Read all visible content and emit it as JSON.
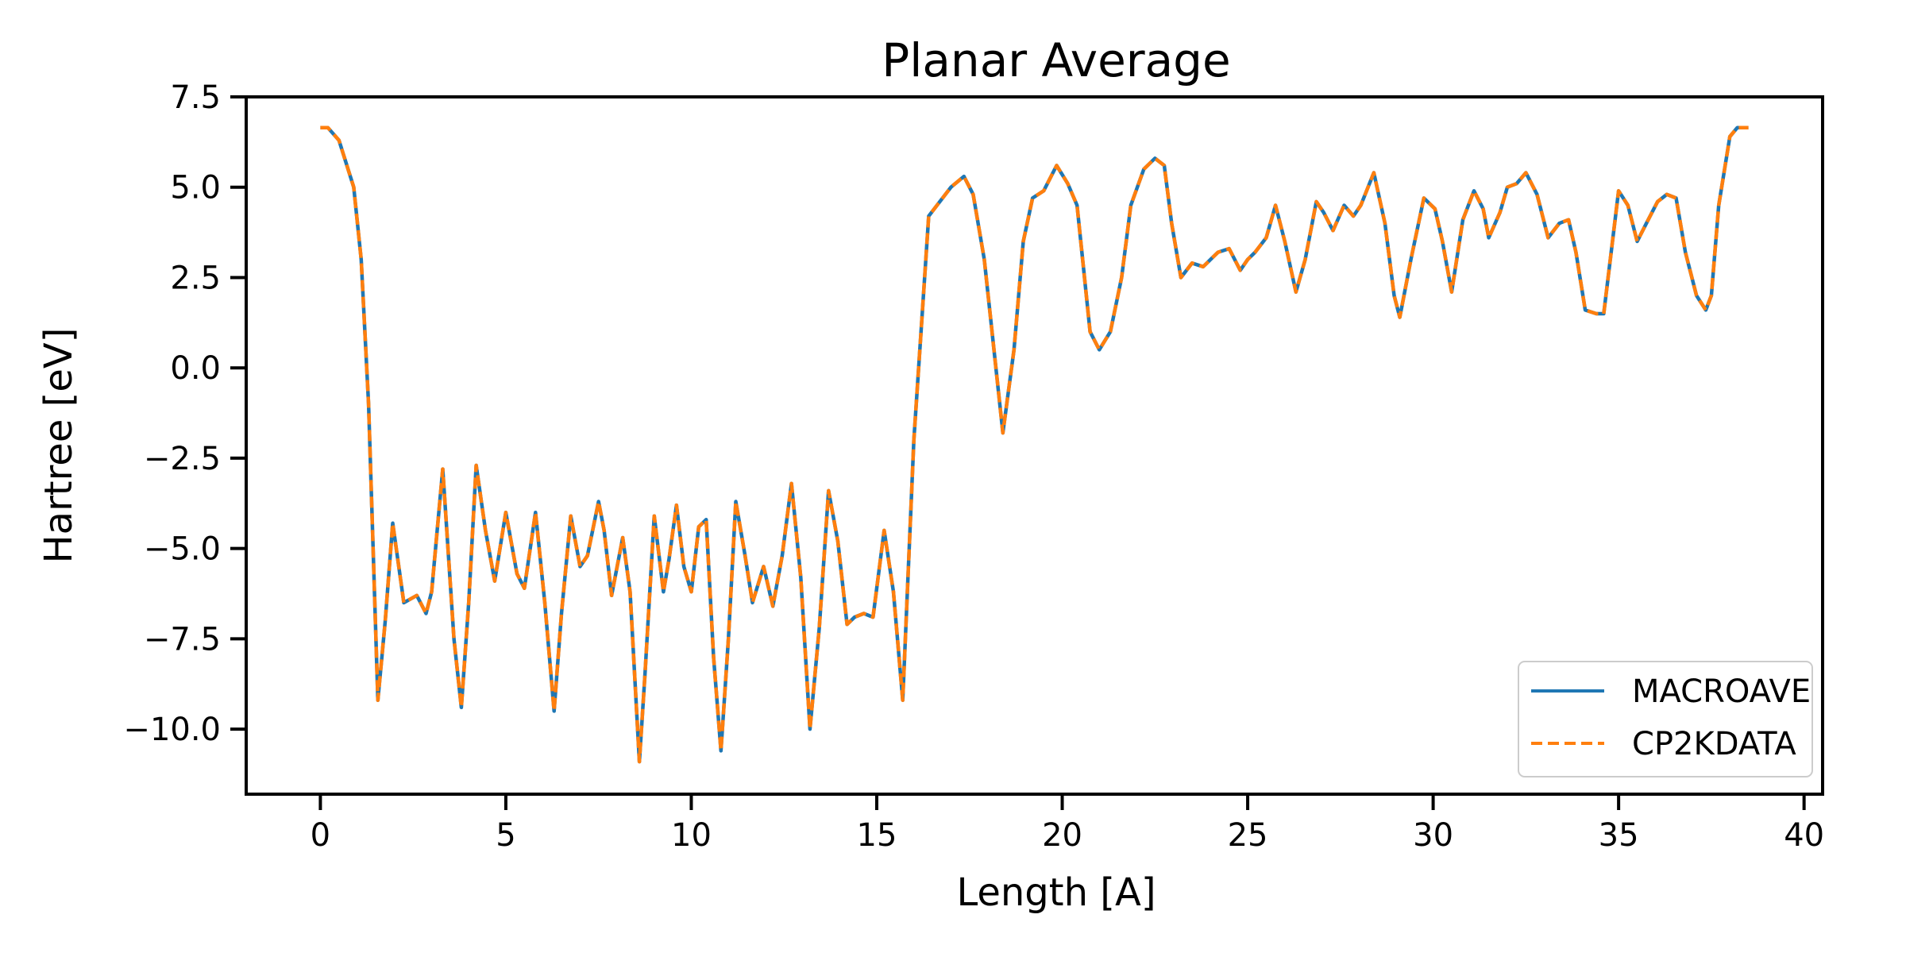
{
  "chart_data": {
    "type": "line",
    "title": "Planar Average",
    "xlabel": "Length [A]",
    "ylabel": "Hartree [eV]",
    "xlim": [
      -2,
      40.5
    ],
    "ylim": [
      -11.8,
      7.5
    ],
    "xticks": [
      0,
      5,
      10,
      15,
      20,
      25,
      30,
      35,
      40
    ],
    "xtick_labels": [
      "0",
      "5",
      "10",
      "15",
      "20",
      "25",
      "30",
      "35",
      "40"
    ],
    "yticks": [
      7.5,
      5.0,
      2.5,
      0.0,
      -2.5,
      -5.0,
      -7.5,
      -10.0
    ],
    "ytick_labels": [
      "7.5",
      "5.0",
      "2.5",
      "0.0",
      "−2.5",
      "−5.0",
      "−7.5",
      "−10.0"
    ],
    "grid": false,
    "legend_position": "bottom-right",
    "series": [
      {
        "name": "MACROAVE",
        "color": "#1f77b4",
        "style": "solid",
        "x": [
          0,
          0.2,
          0.5,
          0.9,
          1.1,
          1.3,
          1.55,
          1.75,
          1.95,
          2.25,
          2.6,
          2.85,
          3.0,
          3.3,
          3.6,
          3.8,
          4.0,
          4.2,
          4.45,
          4.7,
          5.0,
          5.3,
          5.5,
          5.8,
          6.05,
          6.3,
          6.5,
          6.75,
          7.0,
          7.2,
          7.5,
          7.65,
          7.85,
          8.15,
          8.35,
          8.6,
          8.75,
          9.0,
          9.25,
          9.4,
          9.6,
          9.8,
          10.0,
          10.2,
          10.4,
          10.6,
          10.8,
          11.0,
          11.2,
          11.45,
          11.65,
          11.95,
          12.2,
          12.45,
          12.7,
          12.95,
          13.2,
          13.45,
          13.7,
          13.95,
          14.2,
          14.4,
          14.65,
          14.9,
          15.2,
          15.45,
          15.7,
          16.0,
          16.4,
          17.0,
          17.35,
          17.6,
          17.9,
          18.4,
          18.7,
          18.95,
          19.2,
          19.5,
          19.85,
          20.15,
          20.4,
          20.75,
          21.0,
          21.3,
          21.6,
          21.85,
          22.2,
          22.5,
          22.75,
          22.95,
          23.2,
          23.5,
          23.8,
          24.2,
          24.5,
          24.8,
          25.0,
          25.2,
          25.5,
          25.75,
          26.0,
          26.3,
          26.55,
          26.85,
          27.05,
          27.3,
          27.6,
          27.85,
          28.05,
          28.4,
          28.7,
          28.95,
          29.1,
          29.4,
          29.75,
          30.05,
          30.25,
          30.5,
          30.8,
          31.1,
          31.35,
          31.5,
          31.8,
          32.0,
          32.25,
          32.5,
          32.8,
          33.1,
          33.4,
          33.65,
          33.85,
          34.1,
          34.4,
          34.6,
          35.0,
          35.25,
          35.5,
          35.75,
          36.05,
          36.3,
          36.55,
          36.8,
          37.1,
          37.35,
          37.5,
          37.7,
          38.0,
          38.2,
          38.5
        ],
        "y": [
          6.65,
          6.65,
          6.3,
          5.0,
          3.0,
          -1.0,
          -9.2,
          -7.0,
          -4.3,
          -6.5,
          -6.3,
          -6.8,
          -6.2,
          -2.8,
          -7.5,
          -9.4,
          -6.5,
          -2.7,
          -4.5,
          -5.9,
          -4.0,
          -5.7,
          -6.1,
          -4.0,
          -6.5,
          -9.5,
          -6.8,
          -4.1,
          -5.5,
          -5.2,
          -3.7,
          -4.5,
          -6.3,
          -4.7,
          -6.2,
          -10.9,
          -8.5,
          -4.1,
          -6.2,
          -5.3,
          -3.8,
          -5.5,
          -6.2,
          -4.4,
          -4.2,
          -8.0,
          -10.6,
          -7.5,
          -3.7,
          -5.2,
          -6.5,
          -5.5,
          -6.6,
          -5.2,
          -3.2,
          -5.8,
          -10.0,
          -7.2,
          -3.4,
          -4.8,
          -7.1,
          -6.9,
          -6.8,
          -6.9,
          -4.5,
          -6.2,
          -9.2,
          -2.0,
          4.2,
          5.0,
          5.3,
          4.8,
          3.0,
          -1.8,
          0.5,
          3.5,
          4.7,
          4.9,
          5.6,
          5.1,
          4.5,
          1.0,
          0.5,
          1.0,
          2.5,
          4.5,
          5.5,
          5.8,
          5.6,
          4.0,
          2.5,
          2.9,
          2.8,
          3.2,
          3.3,
          2.7,
          3.0,
          3.2,
          3.6,
          4.5,
          3.5,
          2.1,
          3.0,
          4.6,
          4.3,
          3.8,
          4.5,
          4.2,
          4.5,
          5.4,
          4.0,
          2.0,
          1.4,
          3.0,
          4.7,
          4.4,
          3.5,
          2.1,
          4.1,
          4.9,
          4.4,
          3.6,
          4.3,
          5.0,
          5.1,
          5.4,
          4.8,
          3.6,
          4.0,
          4.1,
          3.2,
          1.6,
          1.5,
          1.5,
          4.9,
          4.5,
          3.5,
          4.0,
          4.6,
          4.8,
          4.7,
          3.2,
          2.0,
          1.6,
          2.0,
          4.5,
          6.4,
          6.65,
          6.65
        ]
      },
      {
        "name": "CP2KDATA",
        "color": "#ff7f0e",
        "style": "dashed",
        "x": [
          0,
          0.2,
          0.5,
          0.9,
          1.1,
          1.3,
          1.55,
          1.75,
          1.95,
          2.25,
          2.6,
          2.85,
          3.0,
          3.3,
          3.6,
          3.8,
          4.0,
          4.2,
          4.45,
          4.7,
          5.0,
          5.3,
          5.5,
          5.8,
          6.05,
          6.3,
          6.5,
          6.75,
          7.0,
          7.2,
          7.5,
          7.65,
          7.85,
          8.15,
          8.35,
          8.6,
          8.75,
          9.0,
          9.25,
          9.4,
          9.6,
          9.8,
          10.0,
          10.2,
          10.4,
          10.6,
          10.8,
          11.0,
          11.2,
          11.45,
          11.65,
          11.95,
          12.2,
          12.45,
          12.7,
          12.95,
          13.2,
          13.45,
          13.7,
          13.95,
          14.2,
          14.4,
          14.65,
          14.9,
          15.2,
          15.45,
          15.7,
          16.0,
          16.4,
          17.0,
          17.35,
          17.6,
          17.9,
          18.4,
          18.7,
          18.95,
          19.2,
          19.5,
          19.85,
          20.15,
          20.4,
          20.75,
          21.0,
          21.3,
          21.6,
          21.85,
          22.2,
          22.5,
          22.75,
          22.95,
          23.2,
          23.5,
          23.8,
          24.2,
          24.5,
          24.8,
          25.0,
          25.2,
          25.5,
          25.75,
          26.0,
          26.3,
          26.55,
          26.85,
          27.05,
          27.3,
          27.6,
          27.85,
          28.05,
          28.4,
          28.7,
          28.95,
          29.1,
          29.4,
          29.75,
          30.05,
          30.25,
          30.5,
          30.8,
          31.1,
          31.35,
          31.5,
          31.8,
          32.0,
          32.25,
          32.5,
          32.8,
          33.1,
          33.4,
          33.65,
          33.85,
          34.1,
          34.4,
          34.6,
          35.0,
          35.25,
          35.5,
          35.75,
          36.05,
          36.3,
          36.55,
          36.8,
          37.1,
          37.35,
          37.5,
          37.7,
          38.0,
          38.2,
          38.5
        ],
        "y": [
          6.65,
          6.65,
          6.3,
          5.0,
          3.0,
          -1.0,
          -9.2,
          -7.0,
          -4.3,
          -6.5,
          -6.3,
          -6.8,
          -6.2,
          -2.8,
          -7.5,
          -9.4,
          -6.5,
          -2.7,
          -4.5,
          -5.9,
          -4.0,
          -5.7,
          -6.1,
          -4.0,
          -6.5,
          -9.5,
          -6.8,
          -4.1,
          -5.5,
          -5.2,
          -3.7,
          -4.5,
          -6.3,
          -4.7,
          -6.2,
          -10.9,
          -8.5,
          -4.1,
          -6.2,
          -5.3,
          -3.8,
          -5.5,
          -6.2,
          -4.4,
          -4.2,
          -8.0,
          -10.6,
          -7.5,
          -3.7,
          -5.2,
          -6.5,
          -5.5,
          -6.6,
          -5.2,
          -3.2,
          -5.8,
          -10.0,
          -7.2,
          -3.4,
          -4.8,
          -7.1,
          -6.9,
          -6.8,
          -6.9,
          -4.5,
          -6.2,
          -9.2,
          -2.0,
          4.2,
          5.0,
          5.3,
          4.8,
          3.0,
          -1.8,
          0.5,
          3.5,
          4.7,
          4.9,
          5.6,
          5.1,
          4.5,
          1.0,
          0.5,
          1.0,
          2.5,
          4.5,
          5.5,
          5.8,
          5.6,
          4.0,
          2.5,
          2.9,
          2.8,
          3.2,
          3.3,
          2.7,
          3.0,
          3.2,
          3.6,
          4.5,
          3.5,
          2.1,
          3.0,
          4.6,
          4.3,
          3.8,
          4.5,
          4.2,
          4.5,
          5.4,
          4.0,
          2.0,
          1.4,
          3.0,
          4.7,
          4.4,
          3.5,
          2.1,
          4.1,
          4.9,
          4.4,
          3.6,
          4.3,
          5.0,
          5.1,
          5.4,
          4.8,
          3.6,
          4.0,
          4.1,
          3.2,
          1.6,
          1.5,
          1.5,
          4.9,
          4.5,
          3.5,
          4.0,
          4.6,
          4.8,
          4.7,
          3.2,
          2.0,
          1.6,
          2.0,
          4.5,
          6.4,
          6.65,
          6.65
        ]
      }
    ]
  }
}
